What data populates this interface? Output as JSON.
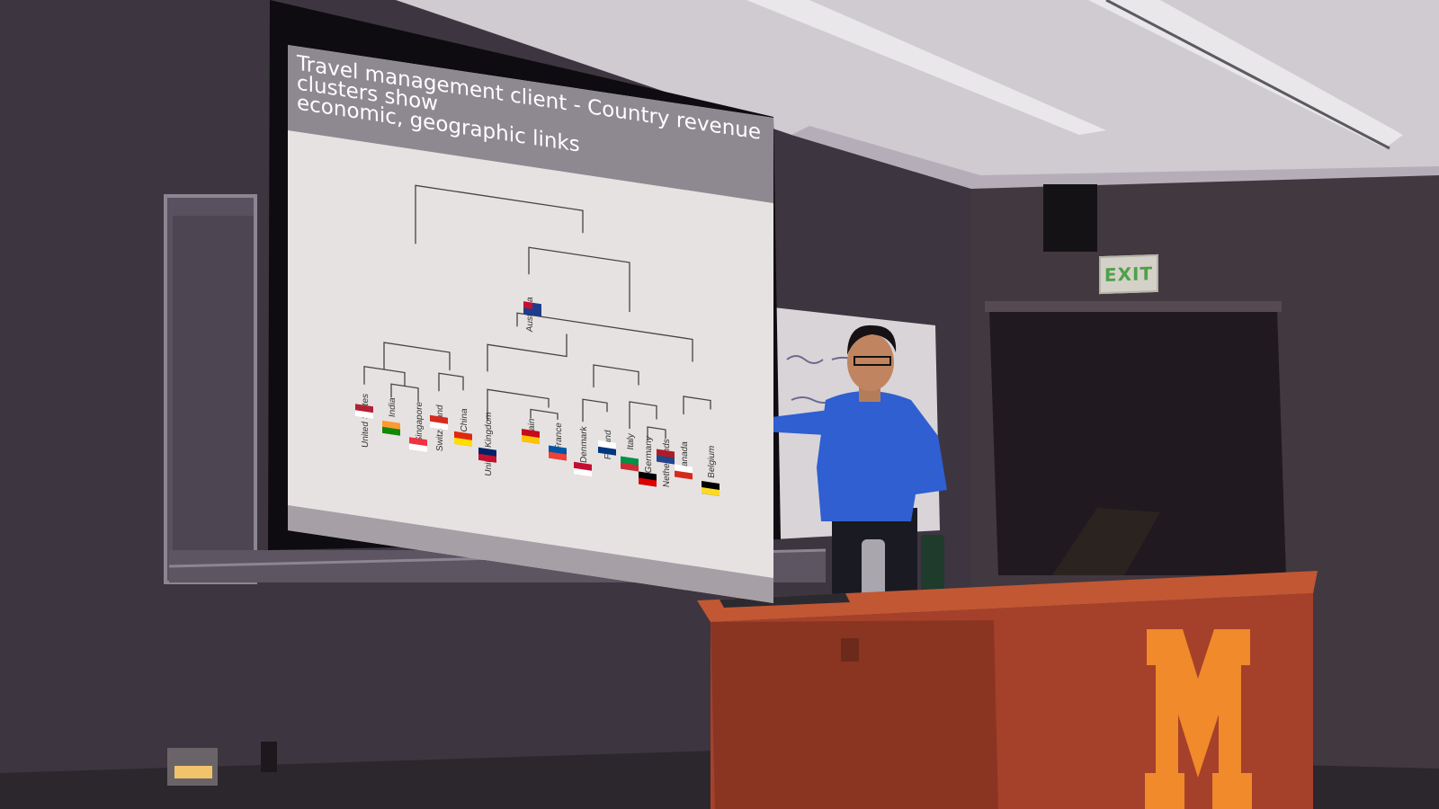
{
  "slide": {
    "title_line1": "Travel management client - Country revenue clusters show",
    "title_line2": "economic, geographic links"
  },
  "dendrogram": {
    "leaves": [
      {
        "label": "United States",
        "flag": "us-flag"
      },
      {
        "label": "India",
        "flag": "india-flag"
      },
      {
        "label": "Singapore",
        "flag": "singapore-flag"
      },
      {
        "label": "Switzerland",
        "flag": "switzerland-flag"
      },
      {
        "label": "China",
        "flag": "china-flag"
      },
      {
        "label": "United Kingdom",
        "flag": "uk-flag"
      },
      {
        "label": "Spain",
        "flag": "spain-flag"
      },
      {
        "label": "France",
        "flag": "france-flag"
      },
      {
        "label": "Denmark",
        "flag": "denmark-flag"
      },
      {
        "label": "Finland",
        "flag": "finland-flag"
      },
      {
        "label": "Italy",
        "flag": "italy-flag"
      },
      {
        "label": "Germany",
        "flag": "germany-flag"
      },
      {
        "label": "Netherlands",
        "flag": "netherlands-flag"
      },
      {
        "label": "Canada",
        "flag": "canada-flag"
      },
      {
        "label": "Belgium",
        "flag": "belgium-flag"
      }
    ],
    "top_leaf": {
      "label": "Australia",
      "flag": "australia-flag"
    }
  },
  "room": {
    "exit_sign": "EXIT"
  },
  "colors": {
    "wall": "#3d3540",
    "screen": "#e6e2e2",
    "shirt": "#2f5fd0",
    "podium": "#b0492a",
    "logo": "#f08a2a"
  }
}
